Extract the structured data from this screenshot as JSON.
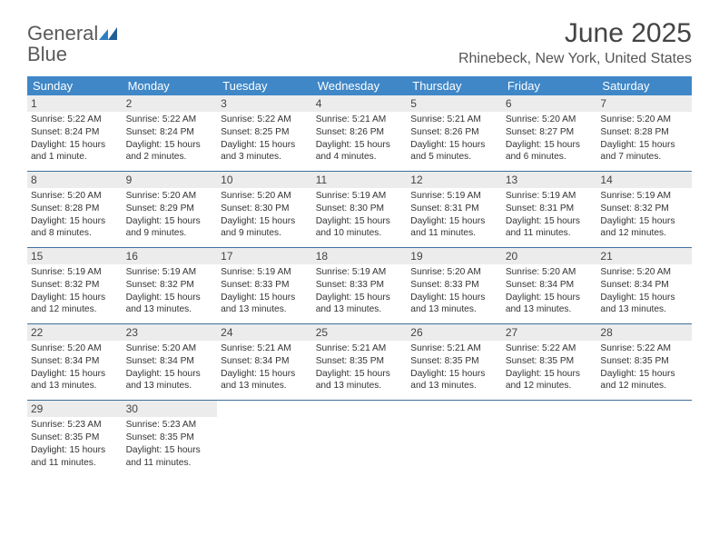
{
  "brand": {
    "name_a": "General",
    "name_b": "Blue"
  },
  "title": "June 2025",
  "subtitle": "Rhinebeck, New York, United States",
  "colors": {
    "header_bg": "#3f87c7",
    "header_text": "#ffffff",
    "daynum_bg": "#ececec",
    "rule": "#3f6f9c",
    "brand_gray": "#5a5a5a",
    "brand_blue": "#2f7dc4"
  },
  "weekdays": [
    "Sunday",
    "Monday",
    "Tuesday",
    "Wednesday",
    "Thursday",
    "Friday",
    "Saturday"
  ],
  "weeks": [
    [
      {
        "n": "1",
        "sr": "5:22 AM",
        "ss": "8:24 PM",
        "dl": "15 hours and 1 minute."
      },
      {
        "n": "2",
        "sr": "5:22 AM",
        "ss": "8:24 PM",
        "dl": "15 hours and 2 minutes."
      },
      {
        "n": "3",
        "sr": "5:22 AM",
        "ss": "8:25 PM",
        "dl": "15 hours and 3 minutes."
      },
      {
        "n": "4",
        "sr": "5:21 AM",
        "ss": "8:26 PM",
        "dl": "15 hours and 4 minutes."
      },
      {
        "n": "5",
        "sr": "5:21 AM",
        "ss": "8:26 PM",
        "dl": "15 hours and 5 minutes."
      },
      {
        "n": "6",
        "sr": "5:20 AM",
        "ss": "8:27 PM",
        "dl": "15 hours and 6 minutes."
      },
      {
        "n": "7",
        "sr": "5:20 AM",
        "ss": "8:28 PM",
        "dl": "15 hours and 7 minutes."
      }
    ],
    [
      {
        "n": "8",
        "sr": "5:20 AM",
        "ss": "8:28 PM",
        "dl": "15 hours and 8 minutes."
      },
      {
        "n": "9",
        "sr": "5:20 AM",
        "ss": "8:29 PM",
        "dl": "15 hours and 9 minutes."
      },
      {
        "n": "10",
        "sr": "5:20 AM",
        "ss": "8:30 PM",
        "dl": "15 hours and 9 minutes."
      },
      {
        "n": "11",
        "sr": "5:19 AM",
        "ss": "8:30 PM",
        "dl": "15 hours and 10 minutes."
      },
      {
        "n": "12",
        "sr": "5:19 AM",
        "ss": "8:31 PM",
        "dl": "15 hours and 11 minutes."
      },
      {
        "n": "13",
        "sr": "5:19 AM",
        "ss": "8:31 PM",
        "dl": "15 hours and 11 minutes."
      },
      {
        "n": "14",
        "sr": "5:19 AM",
        "ss": "8:32 PM",
        "dl": "15 hours and 12 minutes."
      }
    ],
    [
      {
        "n": "15",
        "sr": "5:19 AM",
        "ss": "8:32 PM",
        "dl": "15 hours and 12 minutes."
      },
      {
        "n": "16",
        "sr": "5:19 AM",
        "ss": "8:32 PM",
        "dl": "15 hours and 13 minutes."
      },
      {
        "n": "17",
        "sr": "5:19 AM",
        "ss": "8:33 PM",
        "dl": "15 hours and 13 minutes."
      },
      {
        "n": "18",
        "sr": "5:19 AM",
        "ss": "8:33 PM",
        "dl": "15 hours and 13 minutes."
      },
      {
        "n": "19",
        "sr": "5:20 AM",
        "ss": "8:33 PM",
        "dl": "15 hours and 13 minutes."
      },
      {
        "n": "20",
        "sr": "5:20 AM",
        "ss": "8:34 PM",
        "dl": "15 hours and 13 minutes."
      },
      {
        "n": "21",
        "sr": "5:20 AM",
        "ss": "8:34 PM",
        "dl": "15 hours and 13 minutes."
      }
    ],
    [
      {
        "n": "22",
        "sr": "5:20 AM",
        "ss": "8:34 PM",
        "dl": "15 hours and 13 minutes."
      },
      {
        "n": "23",
        "sr": "5:20 AM",
        "ss": "8:34 PM",
        "dl": "15 hours and 13 minutes."
      },
      {
        "n": "24",
        "sr": "5:21 AM",
        "ss": "8:34 PM",
        "dl": "15 hours and 13 minutes."
      },
      {
        "n": "25",
        "sr": "5:21 AM",
        "ss": "8:35 PM",
        "dl": "15 hours and 13 minutes."
      },
      {
        "n": "26",
        "sr": "5:21 AM",
        "ss": "8:35 PM",
        "dl": "15 hours and 13 minutes."
      },
      {
        "n": "27",
        "sr": "5:22 AM",
        "ss": "8:35 PM",
        "dl": "15 hours and 12 minutes."
      },
      {
        "n": "28",
        "sr": "5:22 AM",
        "ss": "8:35 PM",
        "dl": "15 hours and 12 minutes."
      }
    ],
    [
      {
        "n": "29",
        "sr": "5:23 AM",
        "ss": "8:35 PM",
        "dl": "15 hours and 11 minutes."
      },
      {
        "n": "30",
        "sr": "5:23 AM",
        "ss": "8:35 PM",
        "dl": "15 hours and 11 minutes."
      },
      null,
      null,
      null,
      null,
      null
    ]
  ],
  "labels": {
    "sunrise": "Sunrise: ",
    "sunset": "Sunset: ",
    "daylight": "Daylight: "
  }
}
